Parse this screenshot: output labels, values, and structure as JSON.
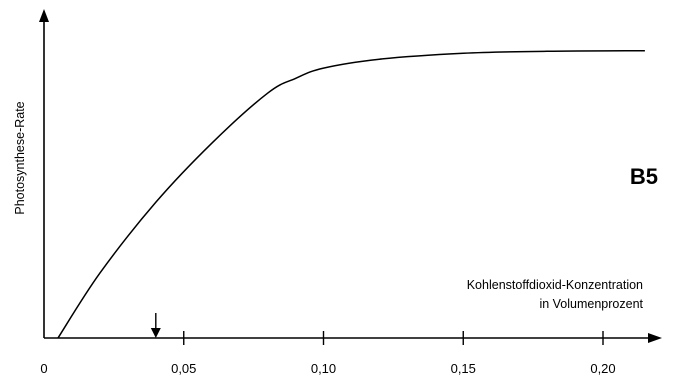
{
  "chart_data": {
    "type": "line",
    "ylabel": "Photosynthese-Rate",
    "xlabel_line1": "Kohlenstoffdioxid-Konzentration",
    "xlabel_line2": "in Volumenprozent",
    "panel_label": "B5",
    "x_ticks": [
      0,
      0.05,
      0.1,
      0.15,
      0.2
    ],
    "x_tick_labels": [
      "0",
      "0,05",
      "0,10",
      "0,15",
      "0,20"
    ],
    "xlim": [
      0,
      0.215
    ],
    "ylim": [
      0,
      1
    ],
    "marker_x": 0.04,
    "series": [
      {
        "x": [
          0.005,
          0.02,
          0.04,
          0.06,
          0.08,
          0.09,
          0.1,
          0.12,
          0.15,
          0.18,
          0.215
        ],
        "values": [
          0.0,
          0.22,
          0.46,
          0.66,
          0.83,
          0.88,
          0.915,
          0.945,
          0.965,
          0.972,
          0.974
        ]
      }
    ]
  }
}
